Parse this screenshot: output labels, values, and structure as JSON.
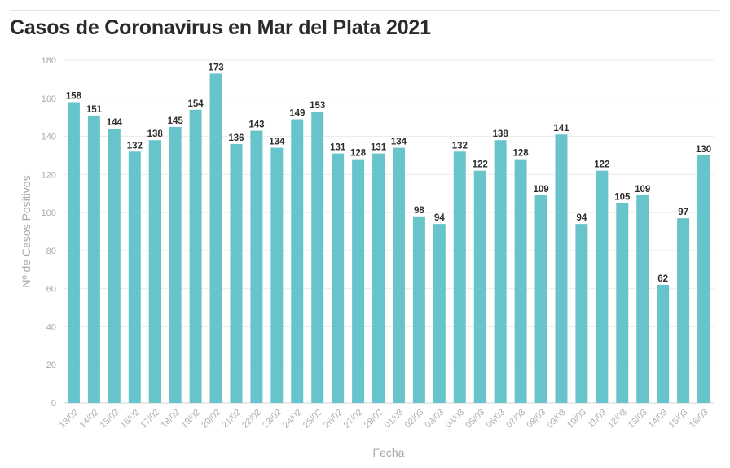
{
  "title": "Casos de Coronavirus en Mar del Plata 2021",
  "chart_data": {
    "type": "bar",
    "xlabel": "Fecha",
    "ylabel": "Nº de Casos Positivos",
    "ylim": [
      0,
      180
    ],
    "yticks": [
      0,
      20,
      40,
      60,
      80,
      100,
      120,
      140,
      160,
      180
    ],
    "grid": true,
    "bar_color": "#67c4cb",
    "categories": [
      "13/02",
      "14/02",
      "15/02",
      "16/02",
      "17/02",
      "18/02",
      "19/02",
      "20/02",
      "21/02",
      "22/02",
      "23/02",
      "24/02",
      "25/02",
      "26/02",
      "27/02",
      "28/02",
      "01/03",
      "02/03",
      "03/03",
      "04/03",
      "05/03",
      "06/03",
      "07/03",
      "08/03",
      "09/03",
      "10/03",
      "11/03",
      "12/03",
      "13/03",
      "14/03",
      "15/03",
      "16/03"
    ],
    "values": [
      158,
      151,
      144,
      132,
      138,
      145,
      154,
      173,
      136,
      143,
      134,
      149,
      153,
      131,
      128,
      131,
      134,
      98,
      94,
      132,
      122,
      138,
      128,
      109,
      141,
      94,
      122,
      105,
      109,
      62,
      97,
      130
    ],
    "data_labels": true
  }
}
